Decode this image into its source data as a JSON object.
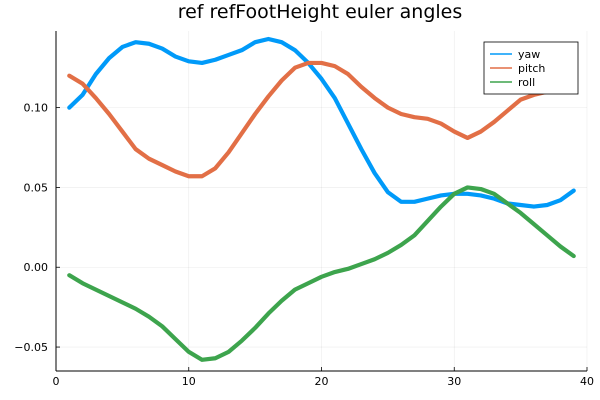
{
  "chart_data": {
    "type": "line",
    "title": "ref refFootHeight euler angles",
    "xlabel": "",
    "ylabel": "",
    "xlim": [
      0,
      40
    ],
    "ylim": [
      -0.065,
      0.148
    ],
    "xticks": [
      0,
      10,
      20,
      30,
      40
    ],
    "yticks": [
      -0.05,
      0.0,
      0.05,
      0.1
    ],
    "xtick_labels": [
      "0",
      "10",
      "20",
      "30",
      "40"
    ],
    "ytick_labels": [
      "−0.05",
      "0.00",
      "0.05",
      "0.10"
    ],
    "grid": true,
    "legend_position": "top-right",
    "x": [
      1,
      2,
      3,
      4,
      5,
      6,
      7,
      8,
      9,
      10,
      11,
      12,
      13,
      14,
      15,
      16,
      17,
      18,
      19,
      20,
      21,
      22,
      23,
      24,
      25,
      26,
      27,
      28,
      29,
      30,
      31,
      32,
      33,
      34,
      35,
      36,
      37,
      38,
      39
    ],
    "series": [
      {
        "name": "yaw",
        "color": "#009af9",
        "values": [
          0.1,
          0.108,
          0.121,
          0.131,
          0.138,
          0.141,
          0.14,
          0.137,
          0.132,
          0.129,
          0.128,
          0.13,
          0.133,
          0.136,
          0.141,
          0.143,
          0.141,
          0.136,
          0.128,
          0.118,
          0.106,
          0.09,
          0.074,
          0.059,
          0.047,
          0.041,
          0.041,
          0.043,
          0.045,
          0.046,
          0.046,
          0.045,
          0.043,
          0.04,
          0.039,
          0.038,
          0.039,
          0.042,
          0.048
        ]
      },
      {
        "name": "pitch",
        "color": "#e26f46",
        "values": [
          0.12,
          0.115,
          0.106,
          0.096,
          0.085,
          0.074,
          0.068,
          0.064,
          0.06,
          0.057,
          0.057,
          0.062,
          0.072,
          0.084,
          0.096,
          0.107,
          0.117,
          0.125,
          0.128,
          0.128,
          0.126,
          0.121,
          0.113,
          0.106,
          0.1,
          0.096,
          0.094,
          0.093,
          0.09,
          0.085,
          0.081,
          0.085,
          0.091,
          0.098,
          0.105,
          0.108,
          0.11,
          0.111,
          0.111
        ]
      },
      {
        "name": "roll",
        "color": "#3da44d",
        "values": [
          -0.005,
          -0.01,
          -0.014,
          -0.018,
          -0.022,
          -0.026,
          -0.031,
          -0.037,
          -0.045,
          -0.053,
          -0.058,
          -0.057,
          -0.053,
          -0.046,
          -0.038,
          -0.029,
          -0.021,
          -0.014,
          -0.01,
          -0.006,
          -0.003,
          -0.001,
          0.002,
          0.005,
          0.009,
          0.014,
          0.02,
          0.029,
          0.038,
          0.046,
          0.05,
          0.049,
          0.046,
          0.04,
          0.034,
          0.027,
          0.02,
          0.013,
          0.007
        ]
      }
    ]
  }
}
